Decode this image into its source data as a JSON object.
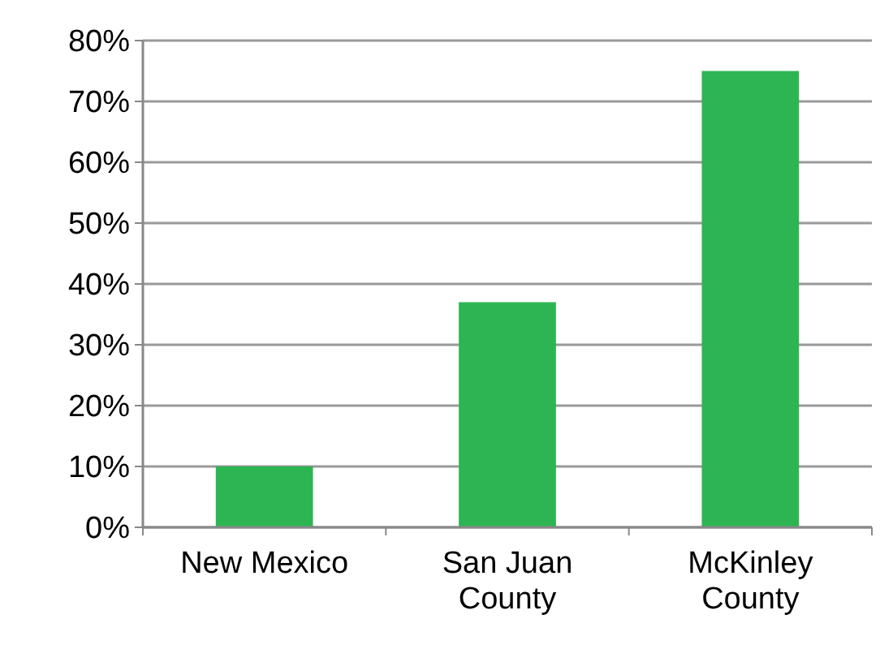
{
  "chart_data": {
    "type": "bar",
    "categories": [
      "New Mexico",
      "San Juan County",
      "McKinley County"
    ],
    "values": [
      10,
      37,
      75
    ],
    "color": "#2db553",
    "ylim": [
      0,
      80
    ],
    "yticks": [
      {
        "value": 0,
        "label": "0%"
      },
      {
        "value": 10,
        "label": "10%"
      },
      {
        "value": 20,
        "label": "20%"
      },
      {
        "value": 30,
        "label": "30%"
      },
      {
        "value": 40,
        "label": "40%"
      },
      {
        "value": 50,
        "label": "50%"
      },
      {
        "value": 60,
        "label": "60%"
      },
      {
        "value": 70,
        "label": "70%"
      },
      {
        "value": 80,
        "label": "80%"
      }
    ],
    "grid": "y"
  }
}
